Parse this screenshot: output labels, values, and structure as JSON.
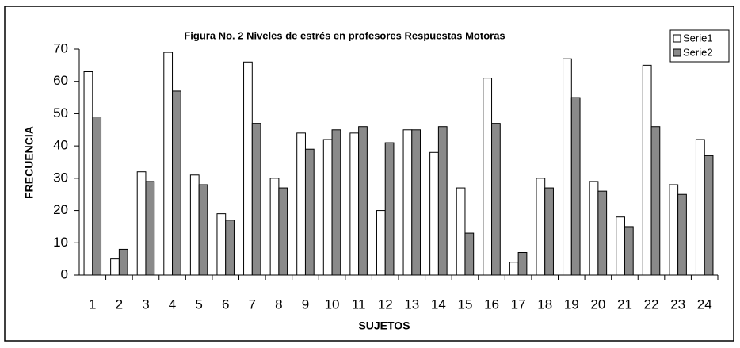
{
  "chart_data": {
    "type": "bar",
    "title": "Figura No. 2 Niveles de estrés en profesores Respuestas Motoras",
    "x_label": "SUJETOS",
    "y_label": "FRECUENCIA",
    "categories": [
      "1",
      "2",
      "3",
      "4",
      "5",
      "6",
      "7",
      "8",
      "9",
      "10",
      "11",
      "12",
      "13",
      "14",
      "15",
      "16",
      "17",
      "18",
      "19",
      "20",
      "21",
      "22",
      "23",
      "24"
    ],
    "series": [
      {
        "name": "Serie1",
        "color": "#ffffff",
        "values": [
          63,
          5,
          32,
          69,
          31,
          19,
          66,
          30,
          44,
          42,
          44,
          20,
          45,
          38,
          27,
          61,
          4,
          30,
          67,
          29,
          18,
          65,
          28,
          42
        ]
      },
      {
        "name": "Serie2",
        "color": "#8a8a8a",
        "values": [
          49,
          8,
          29,
          57,
          28,
          17,
          47,
          27,
          39,
          45,
          46,
          41,
          45,
          46,
          13,
          47,
          7,
          27,
          55,
          26,
          15,
          46,
          25,
          37
        ]
      }
    ],
    "ylim": [
      0,
      70
    ],
    "yticks": [
      0,
      10,
      20,
      30,
      40,
      50,
      60,
      70
    ],
    "grid": false,
    "legend": "top-right"
  }
}
